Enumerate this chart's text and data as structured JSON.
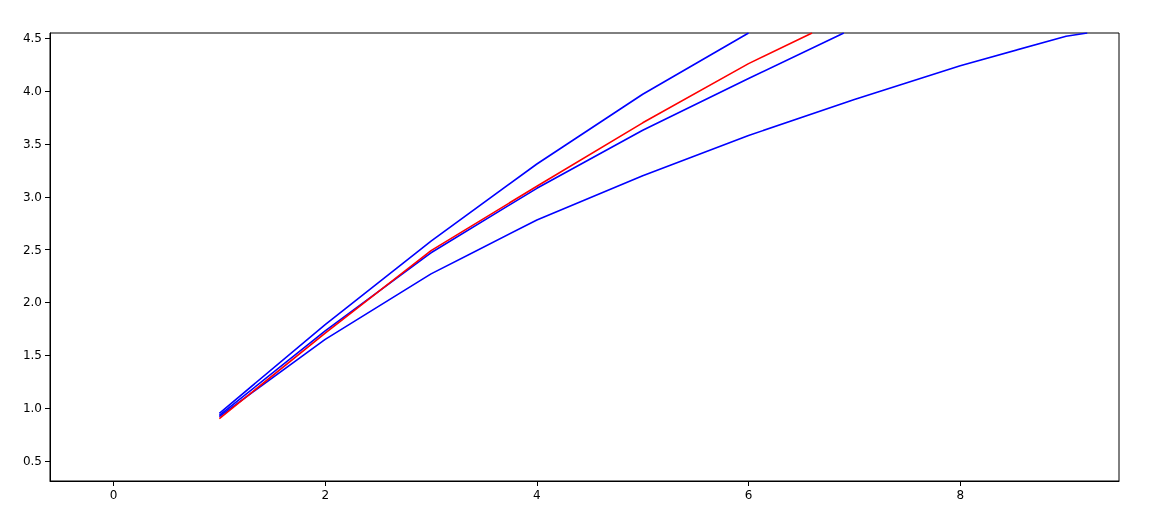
{
  "chart_data": {
    "type": "line",
    "series": [
      {
        "color": "#0000ff",
        "x": [
          1,
          2,
          3,
          4,
          5,
          6
        ],
        "values": [
          0.95,
          1.79,
          2.58,
          3.31,
          3.97,
          4.55
        ]
      },
      {
        "color": "#0000ff",
        "x": [
          1,
          2,
          3,
          4,
          5,
          6,
          6.9
        ],
        "values": [
          0.93,
          1.73,
          2.47,
          3.08,
          3.63,
          4.12,
          4.55
        ]
      },
      {
        "color": "#0000ff",
        "x": [
          1,
          2,
          3,
          4,
          5,
          6,
          7,
          8,
          9,
          9.2
        ],
        "values": [
          0.92,
          1.65,
          2.27,
          2.78,
          3.2,
          3.58,
          3.92,
          4.24,
          4.52,
          4.55
        ]
      },
      {
        "color": "#ff0000",
        "x": [
          1,
          2,
          3,
          4,
          5,
          6,
          6.6
        ],
        "values": [
          0.9,
          1.71,
          2.49,
          3.1,
          3.7,
          4.26,
          4.55
        ]
      }
    ],
    "xlim": [
      -0.6,
      9.5
    ],
    "xticks": [
      0,
      2,
      4,
      6,
      8
    ],
    "ylim": [
      0.31,
      4.55
    ],
    "yticks": [
      {
        "value": 0.5,
        "label": "0.5"
      },
      {
        "value": 1,
        "label": "1.0"
      },
      {
        "value": 1.5,
        "label": "1.5"
      },
      {
        "value": 2,
        "label": "2.0"
      },
      {
        "value": 2.5,
        "label": "2.5"
      },
      {
        "value": 3,
        "label": "3.0"
      },
      {
        "value": 3.5,
        "label": "3.5"
      },
      {
        "value": 4,
        "label": "4.0"
      },
      {
        "value": 4.5,
        "label": "4.5"
      }
    ],
    "marker": "none",
    "line_style": "solid"
  }
}
